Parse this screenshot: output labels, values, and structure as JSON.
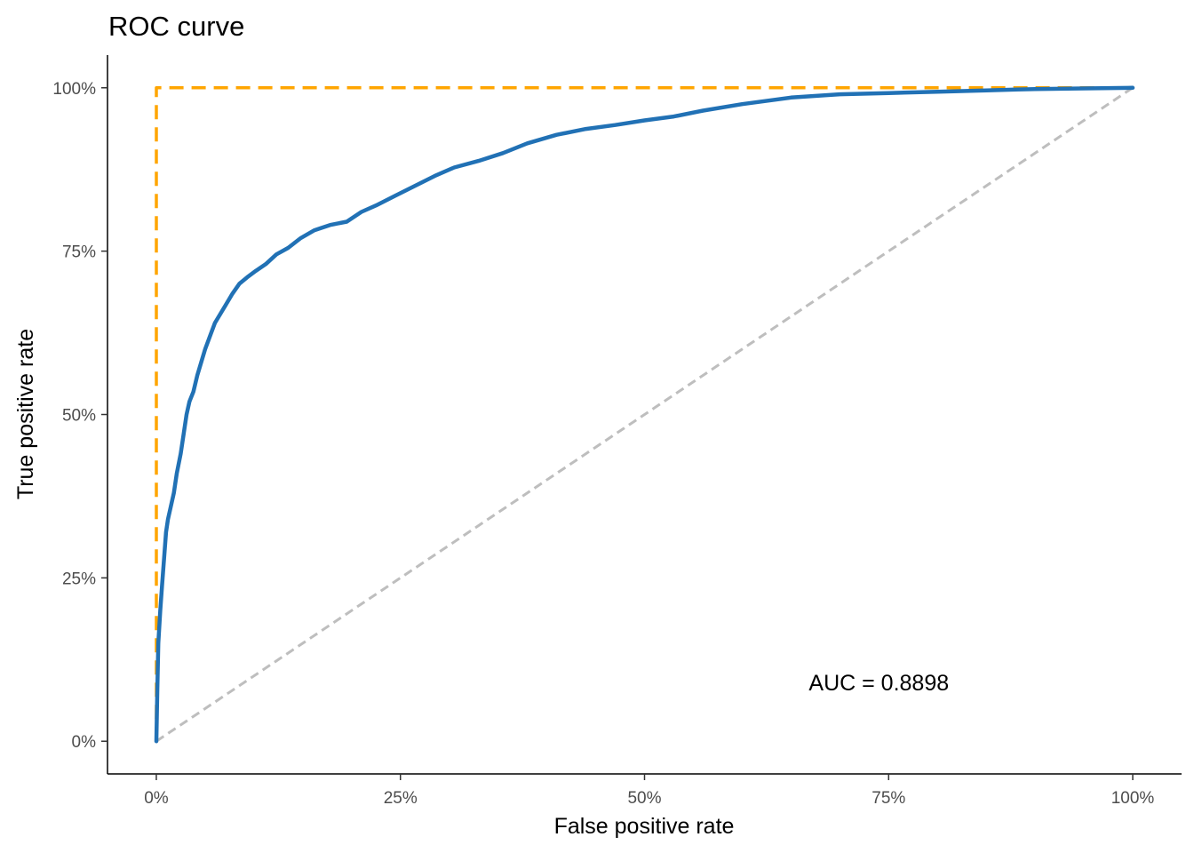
{
  "chart_data": {
    "type": "line",
    "title": "ROC curve",
    "xlabel": "False positive rate",
    "ylabel": "True positive rate",
    "xlim": [
      -0.05,
      1.05
    ],
    "ylim": [
      -0.05,
      1.05
    ],
    "x_ticks": [
      0,
      0.25,
      0.5,
      0.75,
      1
    ],
    "x_tick_labels": [
      "0%",
      "25%",
      "50%",
      "75%",
      "100%"
    ],
    "y_ticks": [
      0,
      0.25,
      0.5,
      0.75,
      1
    ],
    "y_tick_labels": [
      "0%",
      "25%",
      "50%",
      "75%",
      "100%"
    ],
    "grid": false,
    "annotation": {
      "text": "AUC = 0.8898",
      "x": 0.74,
      "y": 0.09
    },
    "series": [
      {
        "role": "perfect-classifier",
        "color": "#FFA500",
        "dash": "dashed",
        "x": [
          0,
          0,
          1
        ],
        "y": [
          0,
          1,
          1
        ]
      },
      {
        "role": "random-classifier",
        "color": "#BEBEBE",
        "dash": "dashed",
        "x": [
          0,
          1
        ],
        "y": [
          0,
          1
        ]
      },
      {
        "role": "model-roc",
        "color": "#2171B5",
        "dash": "solid",
        "x": [
          0,
          0.001,
          0.002,
          0.004,
          0.006,
          0.008,
          0.01,
          0.012,
          0.015,
          0.018,
          0.021,
          0.025,
          0.028,
          0.031,
          0.034,
          0.038,
          0.042,
          0.046,
          0.05,
          0.055,
          0.06,
          0.066,
          0.072,
          0.078,
          0.085,
          0.093,
          0.102,
          0.112,
          0.123,
          0.135,
          0.148,
          0.162,
          0.178,
          0.195,
          0.21,
          0.225,
          0.245,
          0.265,
          0.285,
          0.305,
          0.33,
          0.355,
          0.38,
          0.41,
          0.44,
          0.47,
          0.5,
          0.53,
          0.56,
          0.6,
          0.65,
          0.7,
          0.75,
          0.8,
          0.85,
          0.9,
          0.95,
          1.0
        ],
        "y": [
          0,
          0.08,
          0.15,
          0.2,
          0.24,
          0.28,
          0.32,
          0.34,
          0.36,
          0.38,
          0.41,
          0.44,
          0.47,
          0.5,
          0.52,
          0.535,
          0.56,
          0.58,
          0.6,
          0.62,
          0.64,
          0.655,
          0.67,
          0.685,
          0.7,
          0.71,
          0.72,
          0.73,
          0.745,
          0.755,
          0.77,
          0.782,
          0.79,
          0.795,
          0.81,
          0.82,
          0.835,
          0.85,
          0.865,
          0.878,
          0.888,
          0.9,
          0.915,
          0.928,
          0.937,
          0.943,
          0.95,
          0.956,
          0.965,
          0.975,
          0.985,
          0.99,
          0.992,
          0.994,
          0.996,
          0.998,
          0.999,
          1.0
        ]
      }
    ]
  }
}
